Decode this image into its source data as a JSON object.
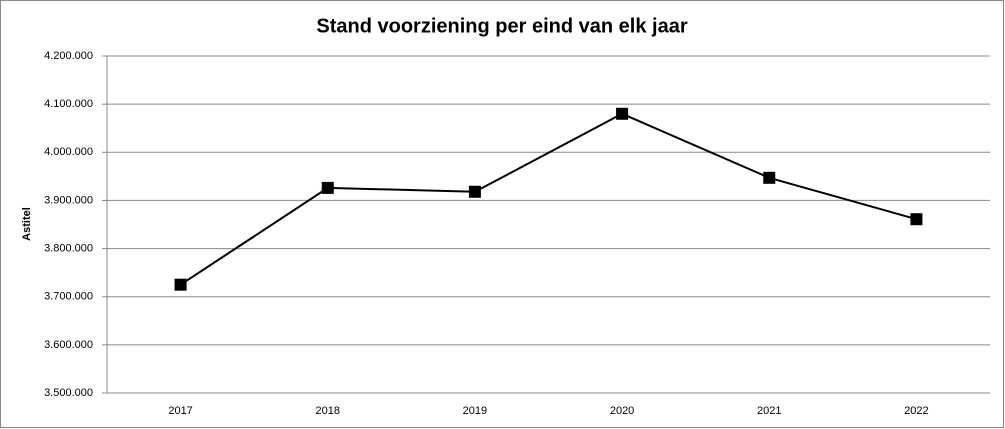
{
  "chart_data": {
    "type": "line",
    "title": "Stand voorziening per eind van elk jaar",
    "y_label": "Astitel",
    "categories": [
      "2017",
      "2018",
      "2019",
      "2020",
      "2021",
      "2022"
    ],
    "values": [
      3725000,
      3926000,
      3918000,
      4080000,
      3947000,
      3861000
    ],
    "color": "#000000",
    "ylim": [
      3500000,
      4200000
    ],
    "yticks": [
      {
        "value": 3500000,
        "label": "3.500.000"
      },
      {
        "value": 3600000,
        "label": "3.600.000"
      },
      {
        "value": 3700000,
        "label": "3.700.000"
      },
      {
        "value": 3800000,
        "label": "3.800.000"
      },
      {
        "value": 3900000,
        "label": "3.900.000"
      },
      {
        "value": 4000000,
        "label": "4.000.000"
      },
      {
        "value": 4100000,
        "label": "4.100.000"
      },
      {
        "value": 4200000,
        "label": "4.200.000"
      }
    ],
    "grid": true
  }
}
